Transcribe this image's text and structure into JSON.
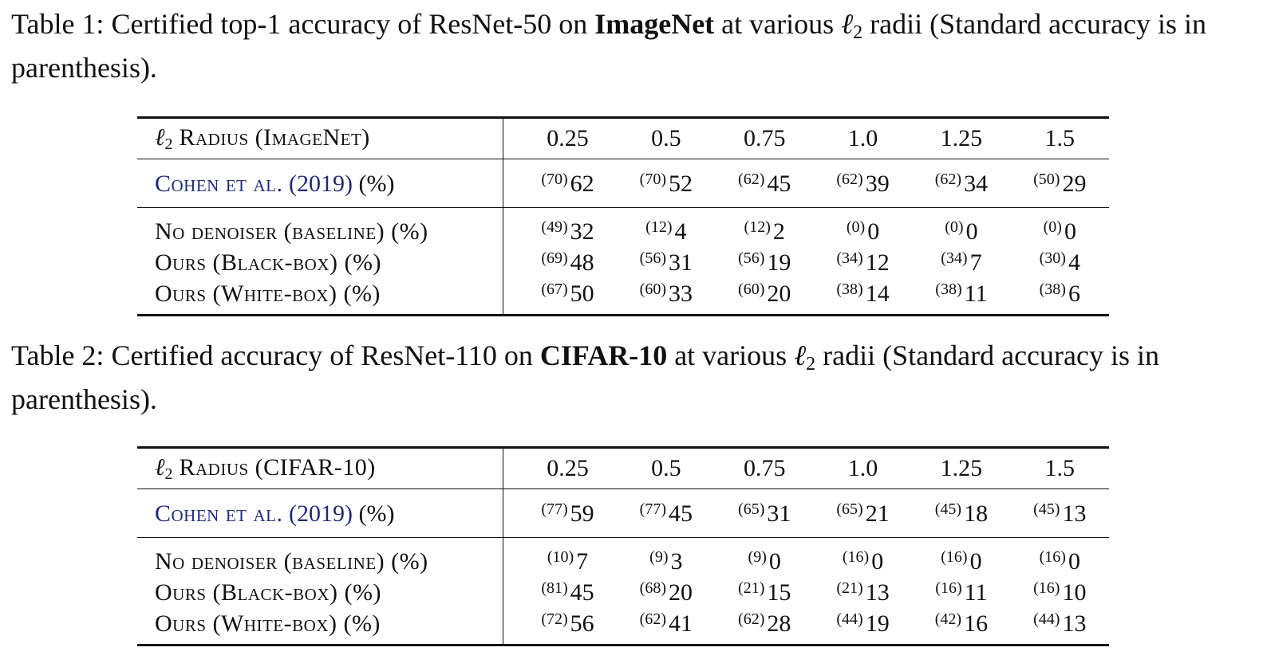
{
  "table1": {
    "caption": {
      "prefix": "Table 1: Certified top-1 accuracy of ResNet-50 on ",
      "bold": "ImageNet",
      "mid": " at various ",
      "ell": "ℓ",
      "sub": "2",
      "suffix": " radii (Standard accuracy is in parenthesis)."
    },
    "header": {
      "ell": "ℓ",
      "sub": "2",
      "label": " Radius (ImageNet)",
      "radii": [
        "0.25",
        "0.5",
        "0.75",
        "1.0",
        "1.25",
        "1.5"
      ]
    },
    "cohen": {
      "name": "Cohen et al.",
      "year": "(2019)",
      "unit": " (%)",
      "cells": [
        {
          "std": "(70)",
          "acc": "62"
        },
        {
          "std": "(70)",
          "acc": "52"
        },
        {
          "std": "(62)",
          "acc": "45"
        },
        {
          "std": "(62)",
          "acc": "39"
        },
        {
          "std": "(62)",
          "acc": "34"
        },
        {
          "std": "(50)",
          "acc": "29"
        }
      ]
    },
    "rows": [
      {
        "label": "No denoiser (baseline) (%)",
        "cells": [
          {
            "std": "(49)",
            "acc": "32"
          },
          {
            "std": "(12)",
            "acc": "4"
          },
          {
            "std": "(12)",
            "acc": "2"
          },
          {
            "std": "(0)",
            "acc": "0"
          },
          {
            "std": "(0)",
            "acc": "0"
          },
          {
            "std": "(0)",
            "acc": "0"
          }
        ]
      },
      {
        "label": "Ours (Black-box) (%)",
        "cells": [
          {
            "std": "(69)",
            "acc": "48"
          },
          {
            "std": "(56)",
            "acc": "31"
          },
          {
            "std": "(56)",
            "acc": "19"
          },
          {
            "std": "(34)",
            "acc": "12"
          },
          {
            "std": "(34)",
            "acc": "7"
          },
          {
            "std": "(30)",
            "acc": "4"
          }
        ]
      },
      {
        "label": "Ours (White-box) (%)",
        "cells": [
          {
            "std": "(67)",
            "acc": "50"
          },
          {
            "std": "(60)",
            "acc": "33"
          },
          {
            "std": "(60)",
            "acc": "20"
          },
          {
            "std": "(38)",
            "acc": "14"
          },
          {
            "std": "(38)",
            "acc": "11"
          },
          {
            "std": "(38)",
            "acc": "6"
          }
        ]
      }
    ]
  },
  "table2": {
    "caption": {
      "prefix": "Table 2: Certified accuracy of ResNet-110 on ",
      "bold": "CIFAR-10",
      "mid": " at various ",
      "ell": "ℓ",
      "sub": "2",
      "suffix": " radii (Standard accuracy is in parenthesis)."
    },
    "header": {
      "ell": "ℓ",
      "sub": "2",
      "label": " Radius (CIFAR-10)",
      "radii": [
        "0.25",
        "0.5",
        "0.75",
        "1.0",
        "1.25",
        "1.5"
      ]
    },
    "cohen": {
      "name": "Cohen et al.",
      "year": "(2019)",
      "unit": " (%)",
      "cells": [
        {
          "std": "(77)",
          "acc": "59"
        },
        {
          "std": "(77)",
          "acc": "45"
        },
        {
          "std": "(65)",
          "acc": "31"
        },
        {
          "std": "(65)",
          "acc": "21"
        },
        {
          "std": "(45)",
          "acc": "18"
        },
        {
          "std": "(45)",
          "acc": "13"
        }
      ]
    },
    "rows": [
      {
        "label": "No denoiser (baseline) (%)",
        "cells": [
          {
            "std": "(10)",
            "acc": "7"
          },
          {
            "std": "(9)",
            "acc": "3"
          },
          {
            "std": "(9)",
            "acc": "0"
          },
          {
            "std": "(16)",
            "acc": "0"
          },
          {
            "std": "(16)",
            "acc": "0"
          },
          {
            "std": "(16)",
            "acc": "0"
          }
        ]
      },
      {
        "label": "Ours (Black-box) (%)",
        "cells": [
          {
            "std": "(81)",
            "acc": "45"
          },
          {
            "std": "(68)",
            "acc": "20"
          },
          {
            "std": "(21)",
            "acc": "15"
          },
          {
            "std": "(21)",
            "acc": "13"
          },
          {
            "std": "(16)",
            "acc": "11"
          },
          {
            "std": "(16)",
            "acc": "10"
          }
        ]
      },
      {
        "label": "Ours (White-box) (%)",
        "cells": [
          {
            "std": "(72)",
            "acc": "56"
          },
          {
            "std": "(62)",
            "acc": "41"
          },
          {
            "std": "(62)",
            "acc": "28"
          },
          {
            "std": "(44)",
            "acc": "19"
          },
          {
            "std": "(42)",
            "acc": "16"
          },
          {
            "std": "(44)",
            "acc": "13"
          }
        ]
      }
    ]
  }
}
